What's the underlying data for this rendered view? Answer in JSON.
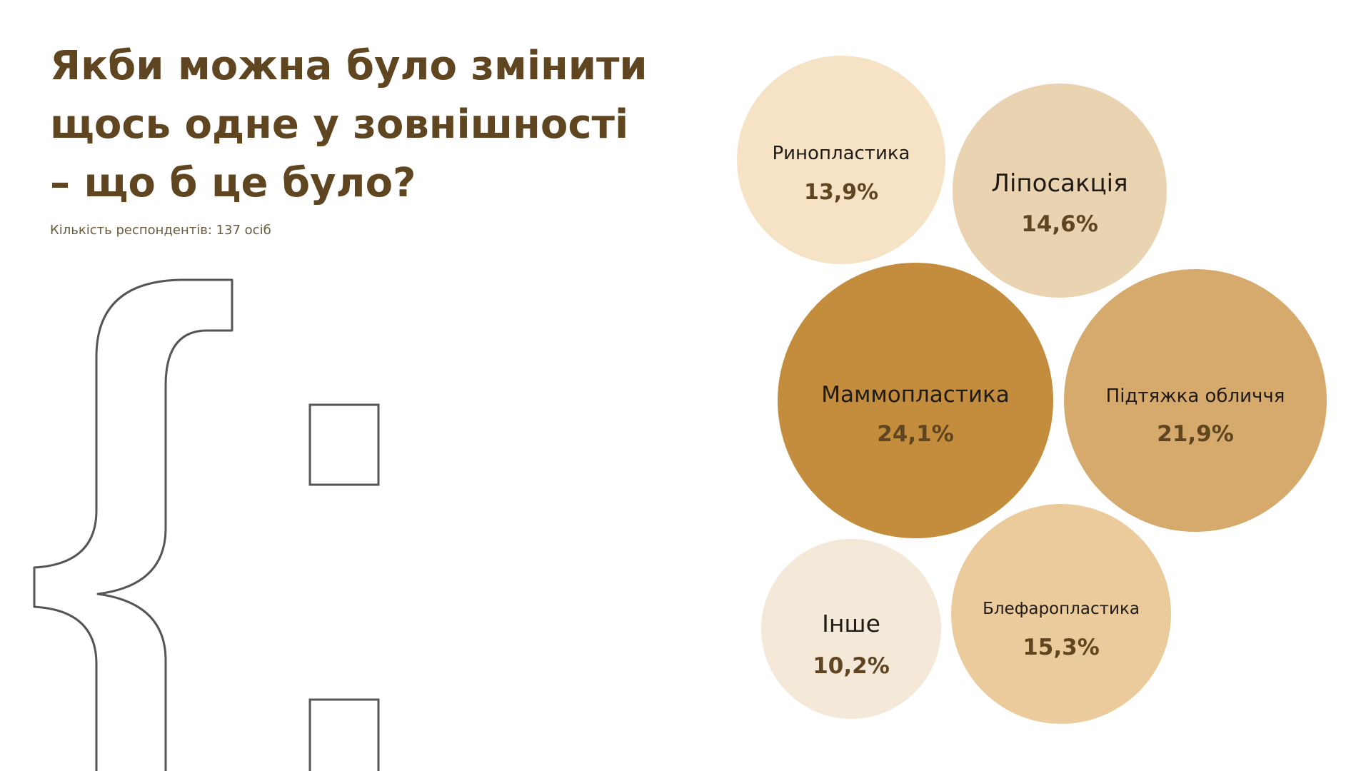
{
  "slide": {
    "title": "Якби можна було змінити\nщось одне у зовнішності\n– що б це було?",
    "subtitle": "Кількість респондентів: 137 осіб"
  },
  "chart_data": {
    "type": "bubble",
    "items": [
      {
        "label": "Ринопластика",
        "value": 13.9,
        "value_label": "13,9%",
        "color": "#f6e2c4"
      },
      {
        "label": "Ліпосакція",
        "value": 14.6,
        "value_label": "14,6%",
        "color": "#ead3b0"
      },
      {
        "label": "Маммопластика",
        "value": 24.1,
        "value_label": "24,1%",
        "color": "#c38d3d"
      },
      {
        "label": "Підтяжка обличчя",
        "value": 21.9,
        "value_label": "21,9%",
        "color": "#d5aa6c"
      },
      {
        "label": "Інше",
        "value": 10.2,
        "value_label": "10,2%",
        "color": "#f4e8d8"
      },
      {
        "label": "Блефаропластика",
        "value": 15.3,
        "value_label": "15,3%",
        "color": "#ebcb9b"
      }
    ]
  }
}
